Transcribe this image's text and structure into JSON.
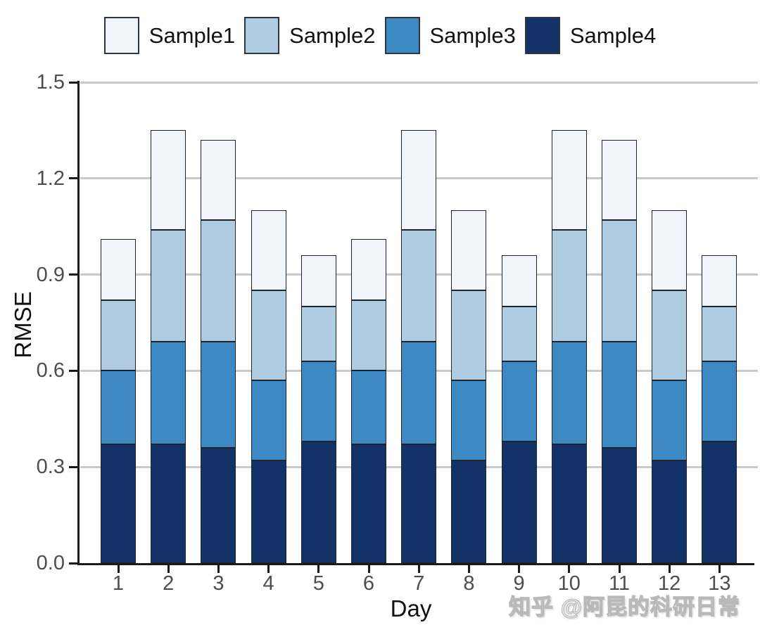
{
  "watermark": "知乎 @阿昆的科研日常",
  "chart_data": {
    "type": "bar",
    "stacked": true,
    "title": "",
    "xlabel": "Day",
    "ylabel": "RMSE",
    "categories": [
      "1",
      "2",
      "3",
      "4",
      "5",
      "6",
      "7",
      "8",
      "9",
      "10",
      "11",
      "12",
      "13"
    ],
    "series": [
      {
        "name": "Sample1",
        "color": "#F1F5FB",
        "values": [
          0.19,
          0.31,
          0.25,
          0.25,
          0.16,
          0.19,
          0.31,
          0.25,
          0.16,
          0.31,
          0.25,
          0.25,
          0.16
        ]
      },
      {
        "name": "Sample2",
        "color": "#AECDE3",
        "values": [
          0.22,
          0.35,
          0.38,
          0.28,
          0.17,
          0.22,
          0.35,
          0.28,
          0.17,
          0.35,
          0.38,
          0.28,
          0.17
        ]
      },
      {
        "name": "Sample3",
        "color": "#3D89C3",
        "values": [
          0.23,
          0.32,
          0.33,
          0.25,
          0.25,
          0.23,
          0.32,
          0.25,
          0.25,
          0.32,
          0.33,
          0.25,
          0.25
        ]
      },
      {
        "name": "Sample4",
        "color": "#133368",
        "values": [
          0.37,
          0.37,
          0.36,
          0.32,
          0.38,
          0.37,
          0.37,
          0.32,
          0.38,
          0.37,
          0.36,
          0.32,
          0.38
        ]
      }
    ],
    "stack_order_bottom_to_top": [
      "Sample4",
      "Sample3",
      "Sample2",
      "Sample1"
    ],
    "totals": [
      1.01,
      1.35,
      1.32,
      1.1,
      0.96,
      1.01,
      1.35,
      1.1,
      0.96,
      1.35,
      1.32,
      1.1,
      0.96
    ],
    "ylim": [
      0.0,
      1.5
    ],
    "ytick_labels": [
      "0.0",
      "0.3",
      "0.6",
      "0.9",
      "1.2",
      "1.5"
    ],
    "grid": "horizontal",
    "legend_position": "top",
    "colors": {
      "axis": "#1A1A1A",
      "grid": "#C9C9C9",
      "tick_labels": "#4D4D4D",
      "axis_titles": "#111111",
      "bar_border": "#1E242C",
      "background": "#FFFFFF"
    }
  }
}
